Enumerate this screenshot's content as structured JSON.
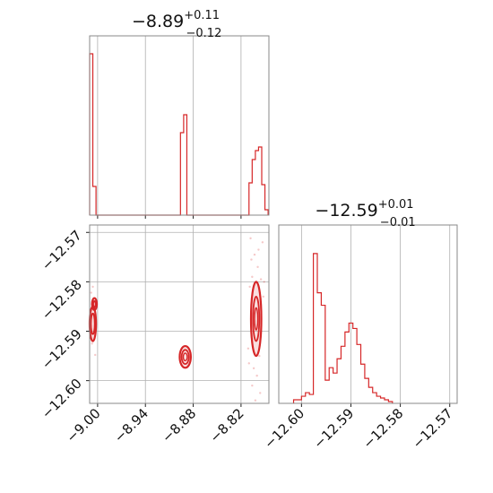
{
  "chart_data": [
    {
      "panel": "x-marginal",
      "type": "bar",
      "title": {
        "median": "−8.89",
        "plus": "+0.11",
        "minus": "−0.12"
      },
      "xlim": [
        -9.01,
        -8.785
      ],
      "ylim": [
        0,
        1
      ],
      "bins": [
        {
          "x0": -9.01,
          "x1": -9.006,
          "v": 0.9
        },
        {
          "x0": -9.006,
          "x1": -9.002,
          "v": 0.16
        },
        {
          "x0": -8.896,
          "x1": -8.892,
          "v": 0.46
        },
        {
          "x0": -8.892,
          "x1": -8.888,
          "v": 0.56
        },
        {
          "x0": -8.81,
          "x1": -8.806,
          "v": 0.18
        },
        {
          "x0": -8.806,
          "x1": -8.802,
          "v": 0.31
        },
        {
          "x0": -8.802,
          "x1": -8.798,
          "v": 0.36
        },
        {
          "x0": -8.798,
          "x1": -8.794,
          "v": 0.38
        },
        {
          "x0": -8.794,
          "x1": -8.79,
          "v": 0.17
        },
        {
          "x0": -8.79,
          "x1": -8.786,
          "v": 0.03
        }
      ]
    },
    {
      "panel": "joint",
      "type": "scatter",
      "xlim": [
        -9.01,
        -8.785
      ],
      "ylim": [
        -12.6046,
        -12.5685
      ],
      "xticks": [
        {
          "value": -9.0,
          "label": "−9.00"
        },
        {
          "value": -8.94,
          "label": "−8.94"
        },
        {
          "value": -8.88,
          "label": "−8.88"
        },
        {
          "value": -8.82,
          "label": "−8.82"
        }
      ],
      "yticks": [
        {
          "value": -12.57,
          "label": "−12.57"
        },
        {
          "value": -12.58,
          "label": "−12.58"
        },
        {
          "value": -12.59,
          "label": "−12.59"
        },
        {
          "value": -12.6,
          "label": "−12.60"
        }
      ],
      "contours": [
        {
          "cx": -9.006,
          "cy": -12.5885,
          "rx": 0.004,
          "ry": 0.0035,
          "levels": [
            1.0,
            0.6
          ]
        },
        {
          "cx": -9.004,
          "cy": -12.5845,
          "rx": 0.003,
          "ry": 0.0012,
          "levels": [
            1.0,
            0.5
          ]
        },
        {
          "cx": -8.89,
          "cy": -12.5952,
          "rx": 0.007,
          "ry": 0.0022,
          "levels": [
            1.0,
            0.65,
            0.35
          ]
        },
        {
          "cx": -8.801,
          "cy": -12.5875,
          "rx": 0.0065,
          "ry": 0.0075,
          "levels": [
            1.0,
            0.6,
            0.3
          ]
        }
      ],
      "points": [
        {
          "x": -9.008,
          "y": -12.5822
        },
        {
          "x": -9.005,
          "y": -12.5838
        },
        {
          "x": -9.007,
          "y": -12.5925
        },
        {
          "x": -9.003,
          "y": -12.5948
        },
        {
          "x": -9.006,
          "y": -12.581
        },
        {
          "x": -8.808,
          "y": -12.5712
        },
        {
          "x": -8.803,
          "y": -12.5745
        },
        {
          "x": -8.799,
          "y": -12.577
        },
        {
          "x": -8.806,
          "y": -12.579
        },
        {
          "x": -8.795,
          "y": -12.5795
        },
        {
          "x": -8.809,
          "y": -12.581
        },
        {
          "x": -8.792,
          "y": -12.583
        },
        {
          "x": -8.797,
          "y": -12.595
        },
        {
          "x": -8.804,
          "y": -12.5975
        },
        {
          "x": -8.8,
          "y": -12.599
        },
        {
          "x": -8.806,
          "y": -12.601
        },
        {
          "x": -8.796,
          "y": -12.6025
        },
        {
          "x": -8.802,
          "y": -12.604
        },
        {
          "x": -8.81,
          "y": -12.5965
        },
        {
          "x": -8.793,
          "y": -12.572
        },
        {
          "x": -8.798,
          "y": -12.5735
        },
        {
          "x": -8.807,
          "y": -12.5755
        },
        {
          "x": -8.791,
          "y": -12.58
        },
        {
          "x": -8.811,
          "y": -12.5935
        }
      ]
    },
    {
      "panel": "y-marginal",
      "type": "bar",
      "title": {
        "median": "−12.59",
        "plus": "+0.01",
        "minus": "−0.01"
      },
      "xlim": [
        -12.6046,
        -12.5685
      ],
      "ylim": [
        0,
        1
      ],
      "xticks": [
        {
          "value": -12.6,
          "label": "−12.60"
        },
        {
          "value": -12.59,
          "label": "−12.59"
        },
        {
          "value": -12.58,
          "label": "−12.58"
        },
        {
          "value": -12.57,
          "label": "−12.57"
        }
      ],
      "bins": [
        {
          "x0": -12.6016,
          "x1": -12.6008,
          "v": 0.02
        },
        {
          "x0": -12.6008,
          "x1": -12.6,
          "v": 0.02
        },
        {
          "x0": -12.6,
          "x1": -12.5992,
          "v": 0.04
        },
        {
          "x0": -12.5992,
          "x1": -12.5984,
          "v": 0.06
        },
        {
          "x0": -12.5984,
          "x1": -12.5976,
          "v": 0.05
        },
        {
          "x0": -12.5976,
          "x1": -12.5968,
          "v": 0.84
        },
        {
          "x0": -12.5968,
          "x1": -12.596,
          "v": 0.62
        },
        {
          "x0": -12.596,
          "x1": -12.5952,
          "v": 0.55
        },
        {
          "x0": -12.5952,
          "x1": -12.5944,
          "v": 0.13
        },
        {
          "x0": -12.5944,
          "x1": -12.5936,
          "v": 0.2
        },
        {
          "x0": -12.5936,
          "x1": -12.5928,
          "v": 0.17
        },
        {
          "x0": -12.5928,
          "x1": -12.592,
          "v": 0.25
        },
        {
          "x0": -12.592,
          "x1": -12.5912,
          "v": 0.32
        },
        {
          "x0": -12.5912,
          "x1": -12.5904,
          "v": 0.4
        },
        {
          "x0": -12.5904,
          "x1": -12.5896,
          "v": 0.45
        },
        {
          "x0": -12.5896,
          "x1": -12.5888,
          "v": 0.42
        },
        {
          "x0": -12.5888,
          "x1": -12.588,
          "v": 0.33
        },
        {
          "x0": -12.588,
          "x1": -12.5872,
          "v": 0.22
        },
        {
          "x0": -12.5872,
          "x1": -12.5864,
          "v": 0.14
        },
        {
          "x0": -12.5864,
          "x1": -12.5856,
          "v": 0.09
        },
        {
          "x0": -12.5856,
          "x1": -12.5848,
          "v": 0.06
        },
        {
          "x0": -12.5848,
          "x1": -12.584,
          "v": 0.04
        },
        {
          "x0": -12.584,
          "x1": -12.5832,
          "v": 0.03
        },
        {
          "x0": -12.5832,
          "x1": -12.5824,
          "v": 0.02
        },
        {
          "x0": -12.5824,
          "x1": -12.5816,
          "v": 0.01
        }
      ]
    }
  ],
  "colors": {
    "series": "#d62728",
    "grid": "#b0b0b0",
    "frame": "#888888"
  }
}
